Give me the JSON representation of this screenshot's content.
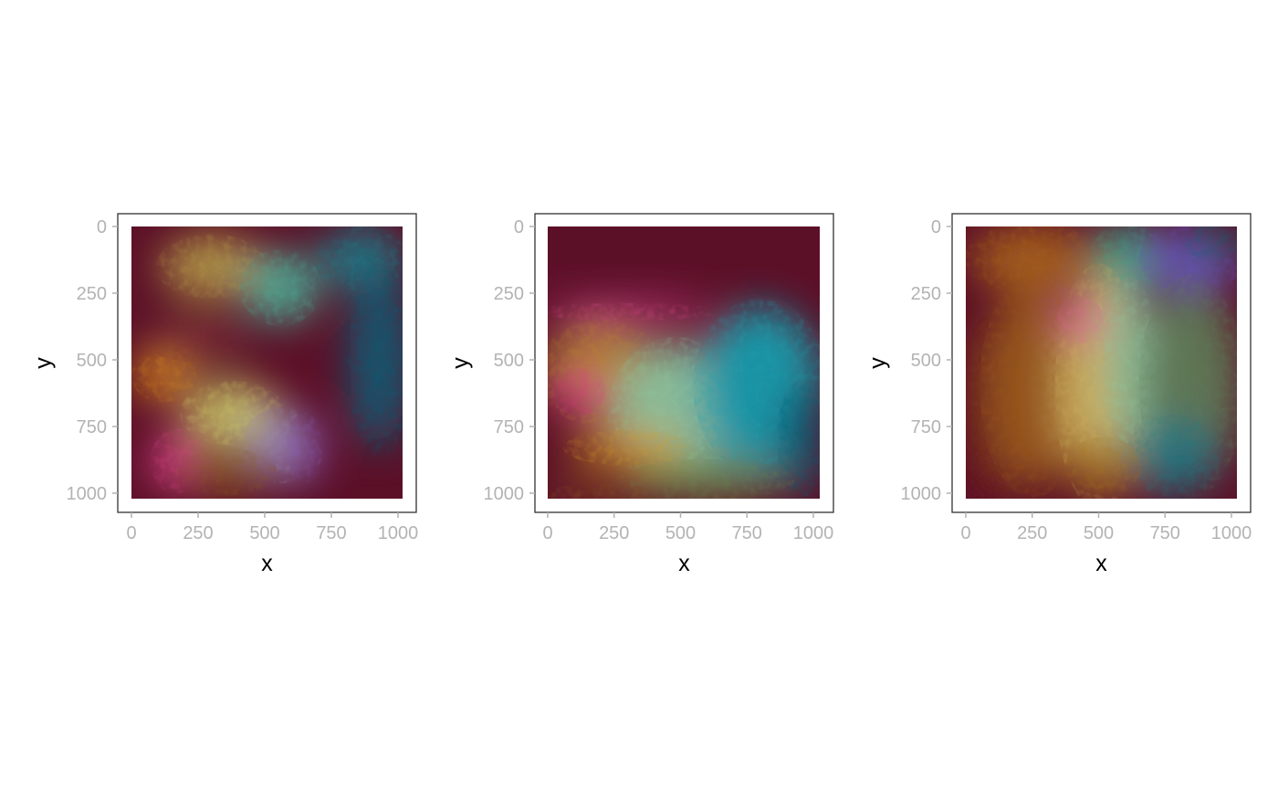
{
  "chart_data": [
    {
      "type": "heatmap",
      "panel": "left",
      "xlabel": "x",
      "ylabel": "y",
      "xlim": [
        0,
        1024
      ],
      "ylim": [
        0,
        1024
      ],
      "y_reversed": true,
      "x_ticks": [
        0,
        250,
        500,
        750,
        1000
      ],
      "y_ticks": [
        0,
        250,
        500,
        750,
        1000
      ],
      "x_tick_labels": [
        "0",
        "250",
        "500",
        "750",
        "1000"
      ],
      "y_tick_labels": [
        "0",
        "250",
        "500",
        "750",
        "1000"
      ],
      "background_color": "#5c1028",
      "regions": [
        {
          "x": 300,
          "y": 150,
          "rx": 190,
          "ry": 110,
          "color": "#b7a14a"
        },
        {
          "x": 560,
          "y": 230,
          "rx": 140,
          "ry": 130,
          "color": "#4bb39a"
        },
        {
          "x": 860,
          "y": 120,
          "rx": 160,
          "ry": 110,
          "color": "#1a7f8c"
        },
        {
          "x": 930,
          "y": 500,
          "rx": 110,
          "ry": 330,
          "color": "#0e5f78"
        },
        {
          "x": 120,
          "y": 560,
          "rx": 110,
          "ry": 90,
          "color": "#d88a1a"
        },
        {
          "x": 380,
          "y": 700,
          "rx": 180,
          "ry": 110,
          "color": "#cfd26a"
        },
        {
          "x": 560,
          "y": 820,
          "rx": 130,
          "ry": 130,
          "color": "#9a8fb8"
        },
        {
          "x": 650,
          "y": 830,
          "rx": 60,
          "ry": 120,
          "color": "#8a5fc0"
        },
        {
          "x": 170,
          "y": 880,
          "rx": 90,
          "ry": 110,
          "color": "#e0468e"
        },
        {
          "x": 360,
          "y": 920,
          "rx": 170,
          "ry": 80,
          "color": "#8a5a22"
        },
        {
          "x": 240,
          "y": 420,
          "rx": 180,
          "ry": 80,
          "color": "#7a2d38"
        }
      ]
    },
    {
      "type": "heatmap",
      "panel": "center",
      "xlabel": "x",
      "ylabel": "y",
      "xlim": [
        0,
        1024
      ],
      "ylim": [
        0,
        1024
      ],
      "y_reversed": true,
      "x_ticks": [
        0,
        250,
        500,
        750,
        1000
      ],
      "y_ticks": [
        0,
        250,
        500,
        750,
        1000
      ],
      "x_tick_labels": [
        "0",
        "250",
        "500",
        "750",
        "1000"
      ],
      "y_tick_labels": [
        "0",
        "250",
        "500",
        "750",
        "1000"
      ],
      "background_color": "#5c1028",
      "regions": [
        {
          "x": 300,
          "y": 320,
          "rx": 320,
          "ry": 30,
          "color": "#e84fa0"
        },
        {
          "x": 200,
          "y": 550,
          "rx": 220,
          "ry": 180,
          "color": "#b88a2a"
        },
        {
          "x": 120,
          "y": 620,
          "rx": 90,
          "ry": 80,
          "color": "#e0368a"
        },
        {
          "x": 480,
          "y": 700,
          "rx": 230,
          "ry": 260,
          "color": "#8ec9a0"
        },
        {
          "x": 800,
          "y": 600,
          "rx": 230,
          "ry": 300,
          "color": "#19a0b0"
        },
        {
          "x": 950,
          "y": 800,
          "rx": 80,
          "ry": 200,
          "color": "#0e5f78"
        },
        {
          "x": 300,
          "y": 830,
          "rx": 220,
          "ry": 60,
          "color": "#d8a020"
        },
        {
          "x": 600,
          "y": 950,
          "rx": 300,
          "ry": 70,
          "color": "#6c8a4a"
        },
        {
          "x": 200,
          "y": 1000,
          "rx": 200,
          "ry": 30,
          "color": "#8a5a22"
        }
      ]
    },
    {
      "type": "heatmap",
      "panel": "right",
      "xlabel": "x",
      "ylabel": "y",
      "xlim": [
        0,
        1024
      ],
      "ylim": [
        0,
        1024
      ],
      "y_reversed": true,
      "x_ticks": [
        0,
        250,
        500,
        750,
        1000
      ],
      "y_ticks": [
        0,
        250,
        500,
        750,
        1000
      ],
      "x_tick_labels": [
        "0",
        "250",
        "500",
        "750",
        "1000"
      ],
      "y_tick_labels": [
        "0",
        "250",
        "500",
        "750",
        "1000"
      ],
      "background_color": "#5c1028",
      "regions": [
        {
          "x": 250,
          "y": 120,
          "rx": 230,
          "ry": 120,
          "color": "#a8641a"
        },
        {
          "x": 600,
          "y": 120,
          "rx": 120,
          "ry": 130,
          "color": "#3aa88a"
        },
        {
          "x": 850,
          "y": 120,
          "rx": 180,
          "ry": 120,
          "color": "#6a4fc0"
        },
        {
          "x": 930,
          "y": 60,
          "rx": 100,
          "ry": 60,
          "color": "#0e6a74"
        },
        {
          "x": 80,
          "y": 700,
          "rx": 90,
          "ry": 330,
          "color": "#6a1a1a"
        },
        {
          "x": 250,
          "y": 600,
          "rx": 180,
          "ry": 380,
          "color": "#9a5a1a"
        },
        {
          "x": 500,
          "y": 600,
          "rx": 150,
          "ry": 420,
          "color": "#d2b860"
        },
        {
          "x": 620,
          "y": 520,
          "rx": 90,
          "ry": 300,
          "color": "#8ec9a0"
        },
        {
          "x": 850,
          "y": 600,
          "rx": 180,
          "ry": 380,
          "color": "#5f7e58"
        },
        {
          "x": 780,
          "y": 860,
          "rx": 160,
          "ry": 140,
          "color": "#1e7a84"
        },
        {
          "x": 430,
          "y": 350,
          "rx": 80,
          "ry": 80,
          "color": "#e06a9a"
        },
        {
          "x": 520,
          "y": 900,
          "rx": 130,
          "ry": 100,
          "color": "#a8781a"
        }
      ]
    }
  ]
}
